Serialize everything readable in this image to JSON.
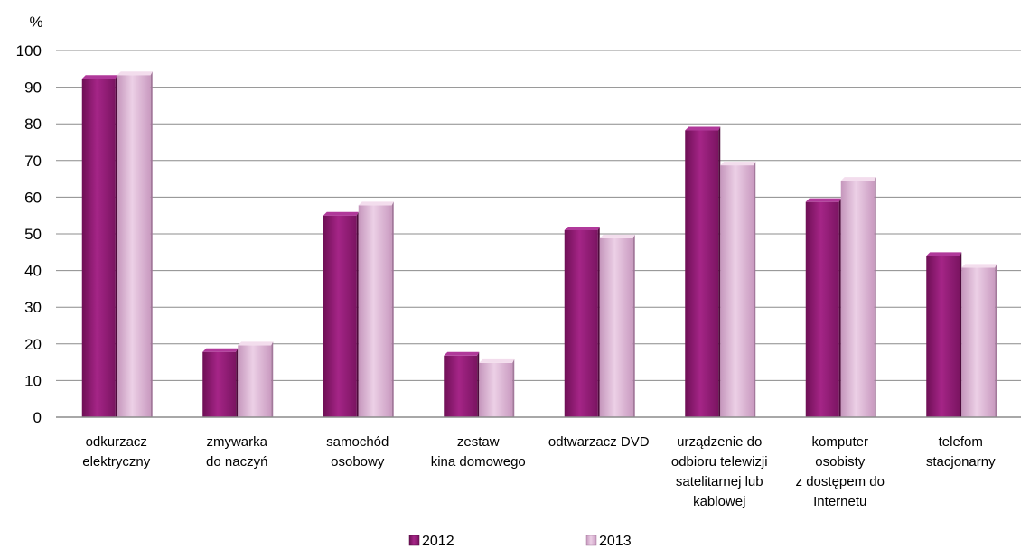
{
  "chart_data": {
    "type": "bar",
    "ylabel": "%",
    "ylim": [
      0,
      100
    ],
    "yticks": [
      0,
      10,
      20,
      30,
      40,
      50,
      60,
      70,
      80,
      90,
      100
    ],
    "grid": true,
    "legend_position": "bottom",
    "categories": [
      [
        "odkurzacz",
        "elektryczny"
      ],
      [
        "zmywarka",
        "do naczyń"
      ],
      [
        "samochód",
        "osobowy"
      ],
      [
        "zestaw",
        "kina domowego"
      ],
      [
        "odtwarzacz DVD"
      ],
      [
        "urządzenie do",
        "odbioru telewizji",
        "satelitarnej lub",
        "kablowej"
      ],
      [
        "komputer",
        "osobisty",
        "z dostępem do",
        "Internetu"
      ],
      [
        "telefom",
        "stacjonarny"
      ]
    ],
    "series": [
      {
        "name": "2012",
        "color": "#8e1b70",
        "values": [
          92.3,
          17.8,
          55.0,
          16.8,
          51.0,
          78.2,
          58.7,
          44.0
        ]
      },
      {
        "name": "2013",
        "color": "#d8aed0",
        "values": [
          93.3,
          19.6,
          57.8,
          14.8,
          48.8,
          68.7,
          64.5,
          40.8
        ]
      }
    ]
  }
}
